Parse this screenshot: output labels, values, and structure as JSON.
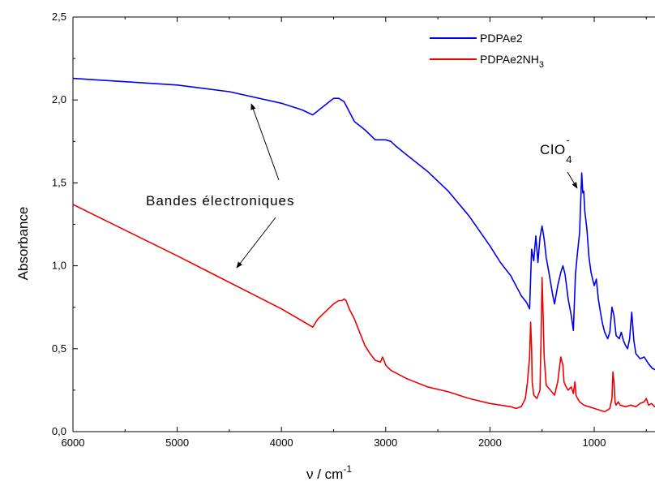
{
  "chart_data": {
    "type": "line",
    "title": "",
    "xlabel": "ν / cm",
    "xlabel_sup": "-1",
    "ylabel": "Absorbance",
    "xlim": [
      6000,
      400
    ],
    "ylim": [
      0,
      2.5
    ],
    "x_reversed": true,
    "xticks": [
      6000,
      5000,
      4000,
      3000,
      2000,
      1000
    ],
    "xtick_labels": [
      "6000",
      "5000",
      "4000",
      "3000",
      "2000",
      "1000"
    ],
    "yticks": [
      0,
      0.5,
      1.0,
      1.5,
      2.0,
      2.5
    ],
    "ytick_labels": [
      "0,0",
      "0,5",
      "1,0",
      "1,5",
      "2,0",
      "2,5"
    ],
    "grid": false,
    "legend_position": "top-right",
    "series": [
      {
        "name": "PDPAe2",
        "color": "#0000ee",
        "x": [
          6000,
          5500,
          5000,
          4500,
          4000,
          3800,
          3700,
          3600,
          3500,
          3450,
          3400,
          3350,
          3300,
          3200,
          3100,
          3000,
          2950,
          2900,
          2800,
          2600,
          2400,
          2200,
          2000,
          1900,
          1800,
          1700,
          1650,
          1620,
          1600,
          1580,
          1560,
          1540,
          1520,
          1500,
          1480,
          1460,
          1440,
          1400,
          1380,
          1350,
          1320,
          1300,
          1280,
          1250,
          1220,
          1200,
          1180,
          1160,
          1140,
          1120,
          1110,
          1100,
          1090,
          1070,
          1050,
          1030,
          1000,
          980,
          960,
          940,
          920,
          900,
          870,
          850,
          830,
          810,
          790,
          760,
          740,
          720,
          700,
          680,
          660,
          640,
          620,
          600,
          560,
          520,
          480,
          440,
          400
        ],
        "values": [
          2.13,
          2.11,
          2.09,
          2.05,
          1.98,
          1.94,
          1.91,
          1.96,
          2.01,
          2.01,
          1.99,
          1.93,
          1.87,
          1.82,
          1.76,
          1.76,
          1.75,
          1.72,
          1.67,
          1.57,
          1.45,
          1.3,
          1.12,
          1.02,
          0.94,
          0.82,
          0.78,
          0.74,
          1.1,
          1.03,
          1.18,
          1.02,
          1.17,
          1.24,
          1.16,
          1.05,
          0.98,
          0.83,
          0.77,
          0.88,
          0.96,
          1.0,
          0.95,
          0.8,
          0.7,
          0.61,
          0.95,
          1.08,
          1.2,
          1.56,
          1.44,
          1.45,
          1.33,
          1.22,
          1.05,
          0.96,
          0.88,
          0.92,
          0.8,
          0.72,
          0.65,
          0.6,
          0.56,
          0.6,
          0.75,
          0.7,
          0.58,
          0.56,
          0.6,
          0.55,
          0.52,
          0.5,
          0.56,
          0.72,
          0.55,
          0.47,
          0.44,
          0.45,
          0.41,
          0.38,
          0.37
        ]
      },
      {
        "name": "PDPAe2NH",
        "name_sub": "3",
        "color": "#ee0000",
        "x": [
          6000,
          5000,
          4000,
          3700,
          3650,
          3600,
          3550,
          3500,
          3450,
          3420,
          3400,
          3380,
          3350,
          3300,
          3250,
          3200,
          3150,
          3100,
          3050,
          3030,
          3010,
          3000,
          2950,
          2800,
          2600,
          2400,
          2200,
          2000,
          1900,
          1800,
          1750,
          1700,
          1660,
          1640,
          1620,
          1610,
          1600,
          1595,
          1580,
          1550,
          1520,
          1510,
          1500,
          1490,
          1480,
          1460,
          1420,
          1380,
          1350,
          1320,
          1300,
          1290,
          1270,
          1250,
          1220,
          1200,
          1185,
          1175,
          1160,
          1140,
          1100,
          1050,
          1000,
          950,
          900,
          850,
          830,
          820,
          810,
          800,
          790,
          770,
          750,
          700,
          650,
          600,
          560,
          520,
          500,
          480,
          450,
          420,
          400
        ],
        "values": [
          1.37,
          1.06,
          0.74,
          0.63,
          0.68,
          0.71,
          0.74,
          0.77,
          0.79,
          0.79,
          0.8,
          0.79,
          0.74,
          0.68,
          0.6,
          0.52,
          0.47,
          0.43,
          0.42,
          0.45,
          0.42,
          0.4,
          0.37,
          0.32,
          0.27,
          0.24,
          0.2,
          0.17,
          0.16,
          0.15,
          0.14,
          0.15,
          0.2,
          0.3,
          0.45,
          0.66,
          0.5,
          0.3,
          0.22,
          0.2,
          0.25,
          0.55,
          0.93,
          0.7,
          0.45,
          0.28,
          0.25,
          0.22,
          0.3,
          0.45,
          0.4,
          0.3,
          0.27,
          0.25,
          0.27,
          0.23,
          0.3,
          0.22,
          0.2,
          0.18,
          0.16,
          0.15,
          0.14,
          0.13,
          0.12,
          0.14,
          0.2,
          0.36,
          0.3,
          0.18,
          0.16,
          0.18,
          0.16,
          0.15,
          0.16,
          0.15,
          0.17,
          0.18,
          0.2,
          0.16,
          0.17,
          0.15,
          0.16
        ]
      }
    ],
    "annotations": [
      {
        "text": "Bandes électroniques",
        "kind": "label"
      },
      {
        "text": "ClO",
        "sub": "4",
        "sup": "-",
        "kind": "label"
      }
    ]
  }
}
